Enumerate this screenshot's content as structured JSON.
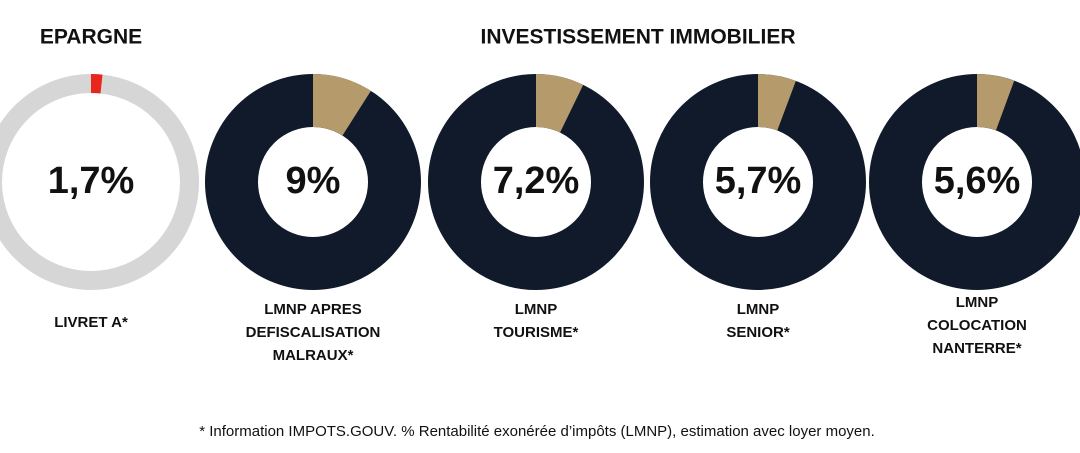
{
  "sections": [
    {
      "title": "EPARGNE"
    },
    {
      "title": "INVESTISSEMENT IMMOBILIER"
    }
  ],
  "chart_data": [
    {
      "type": "pie",
      "donut": true,
      "values": [
        1.7
      ],
      "value_labels": [
        "1,7%"
      ],
      "colors": [
        "#e8261c"
      ],
      "ring_color": "#d6d6d6",
      "label": [
        "LIVRET A*"
      ]
    },
    {
      "type": "pie",
      "donut": true,
      "values": [
        9
      ],
      "value_labels": [
        "9%"
      ],
      "colors": [
        "#b59a6c"
      ],
      "ring_color": "#111a2b",
      "label": [
        "LMNP APRES",
        "DEFISCALISATION",
        "MALRAUX*"
      ]
    },
    {
      "type": "pie",
      "donut": true,
      "values": [
        7.2
      ],
      "value_labels": [
        "7,2%"
      ],
      "colors": [
        "#b59a6c"
      ],
      "ring_color": "#111a2b",
      "label": [
        "LMNP",
        "TOURISME*"
      ]
    },
    {
      "type": "pie",
      "donut": true,
      "values": [
        5.7
      ],
      "value_labels": [
        "5,7%"
      ],
      "colors": [
        "#b59a6c"
      ],
      "ring_color": "#111a2b",
      "label": [
        "LMNP",
        "SENIOR*"
      ]
    },
    {
      "type": "pie",
      "donut": true,
      "values": [
        5.6
      ],
      "value_labels": [
        "5,6%"
      ],
      "colors": [
        "#b59a6c"
      ],
      "ring_color": "#111a2b",
      "label": [
        "LMNP",
        "COLOCATION",
        "NANTERRE*"
      ]
    }
  ],
  "footnote": "* Information IMPOTS.GOUV. % Rentabilité exonérée d’impôts (LMNP), estimation avec loyer moyen."
}
